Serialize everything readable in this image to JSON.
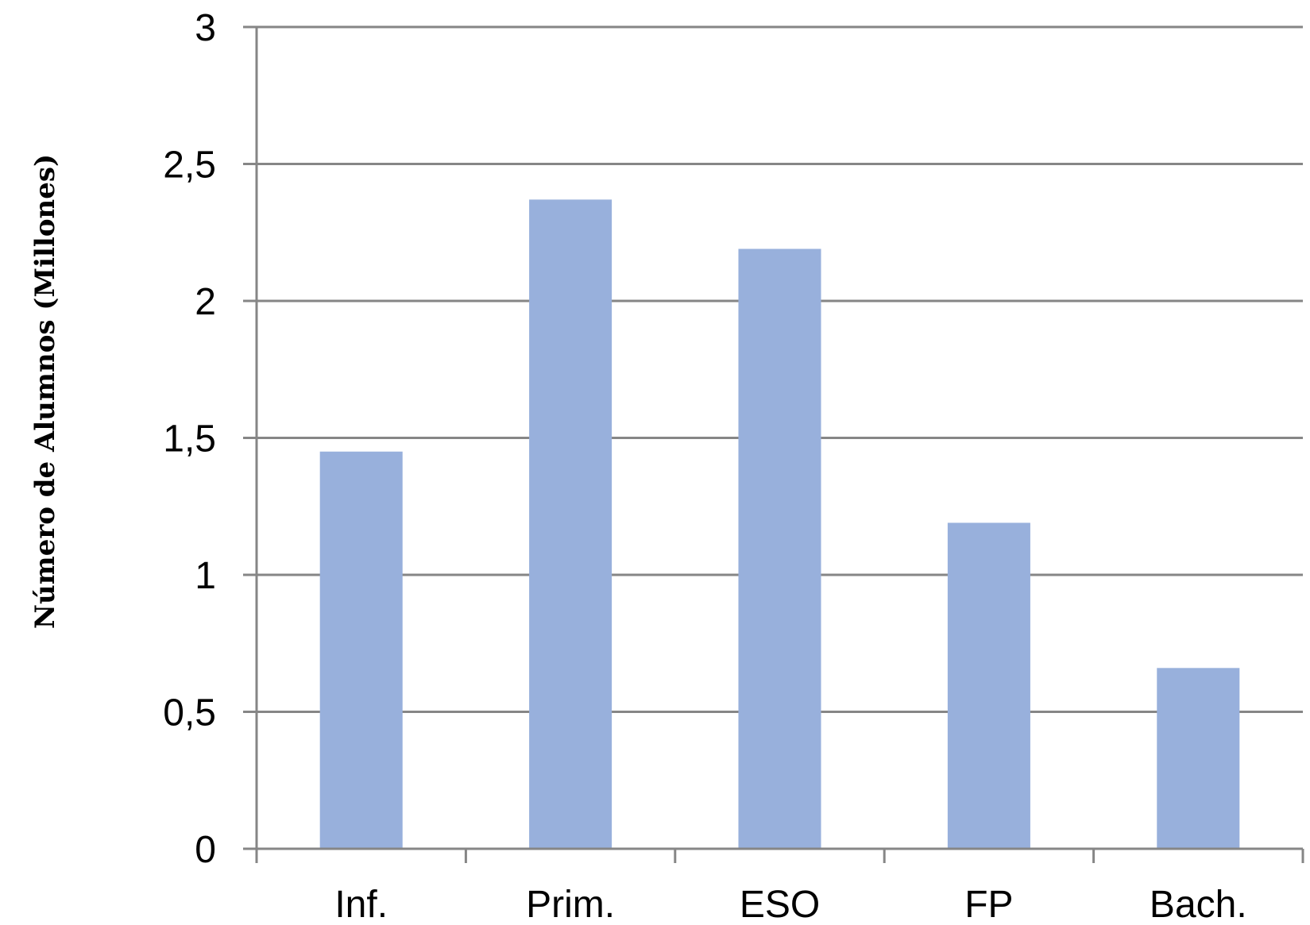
{
  "chart_data": {
    "type": "bar",
    "title": "",
    "xlabel": "",
    "ylabel": "Número de Alumnos (Millones)",
    "categories": [
      "Inf.",
      "Prim.",
      "ESO",
      "FP",
      "Bach."
    ],
    "values": [
      1.45,
      2.37,
      2.19,
      1.19,
      0.66
    ],
    "ylim": [
      0,
      3
    ],
    "yticks": [
      0,
      0.5,
      1,
      1.5,
      2,
      2.5,
      3
    ],
    "ytick_labels": [
      "0",
      "0,5",
      "1",
      "1,5",
      "2",
      "2,5",
      "3"
    ],
    "grid": true,
    "bar_color": "#98b0dc",
    "grid_color": "#868686"
  }
}
